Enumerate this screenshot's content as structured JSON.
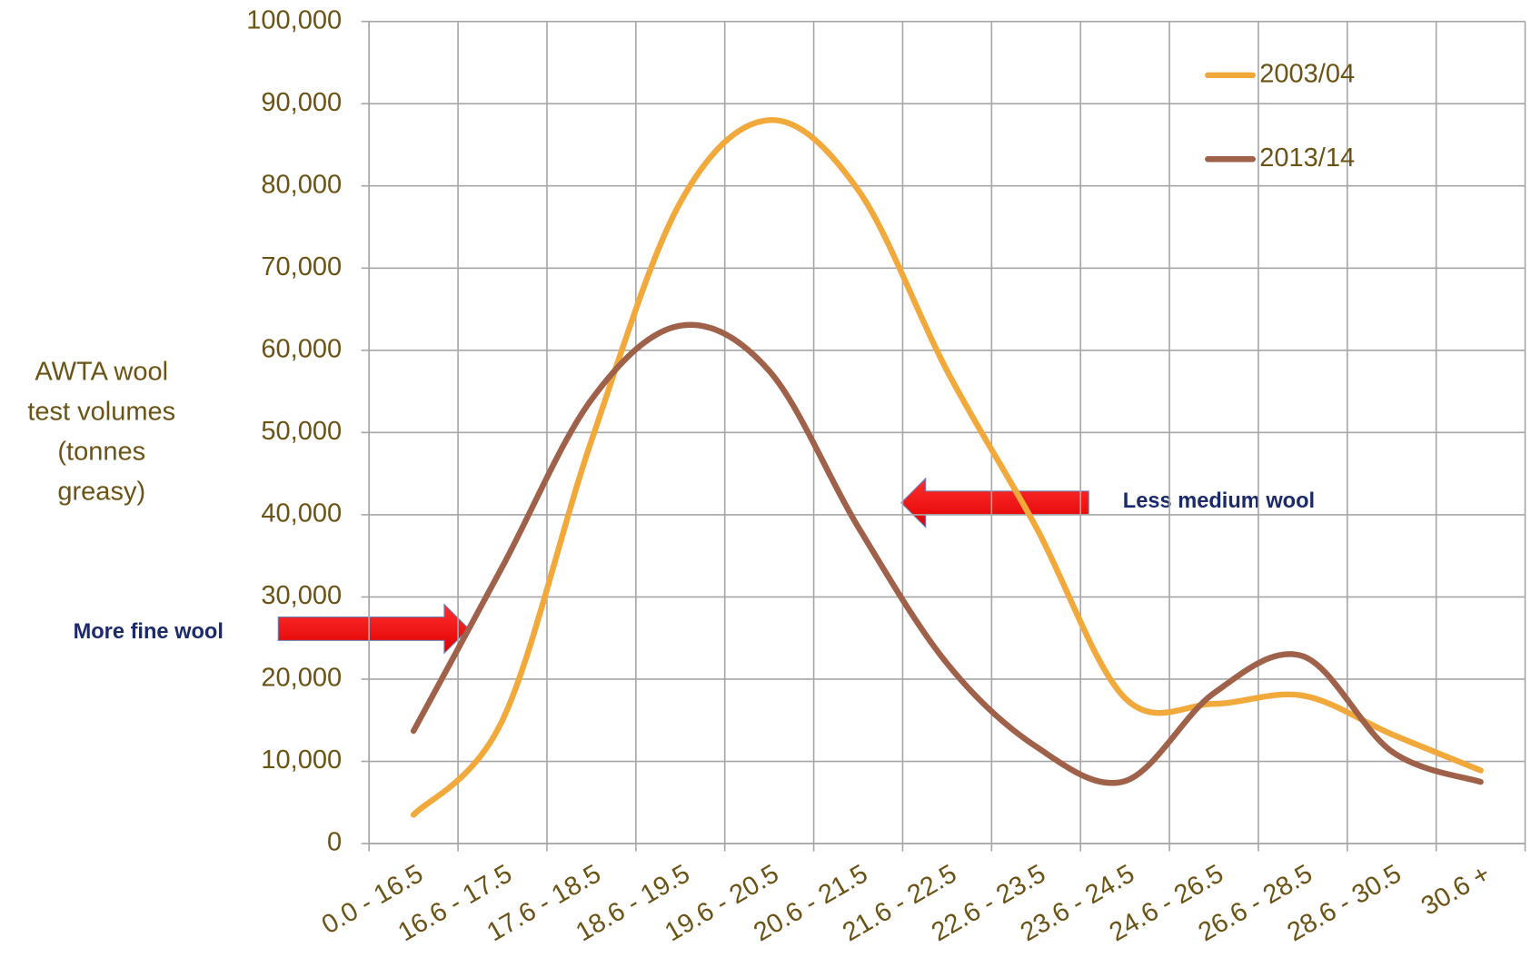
{
  "chart_data": {
    "type": "line",
    "y_label": [
      "AWTA wool",
      "test volumes",
      "(tonnes",
      "greasy)"
    ],
    "categories": [
      "0.0 - 16.5",
      "16.6 - 17.5",
      "17.6 - 18.5",
      "18.6 - 19.5",
      "19.6 - 20.5",
      "20.6 - 21.5",
      "21.6 - 22.5",
      "22.6 - 23.5",
      "23.6 - 24.5",
      "24.6 - 26.5",
      "26.6 - 28.5",
      "28.6 - 30.5",
      "30.6 +"
    ],
    "series": [
      {
        "name": "2003/04",
        "color": "#F2A93B",
        "values": [
          3500,
          15000,
          49000,
          78000,
          88000,
          79500,
          57500,
          38500,
          17700,
          17000,
          18000,
          13300,
          8900
        ]
      },
      {
        "name": "2013/14",
        "color": "#A0614A",
        "values": [
          13700,
          33700,
          54000,
          63000,
          57500,
          38500,
          21900,
          11800,
          7600,
          18300,
          22800,
          11200,
          7500
        ]
      }
    ],
    "ylim": [
      0,
      100000
    ],
    "yticks": [
      0,
      {
        "value": 10000,
        "label": "10,000"
      },
      {
        "value": 20000,
        "label": "20,000"
      },
      {
        "value": 30000,
        "label": "30,000"
      },
      {
        "value": 40000,
        "label": "40,000"
      },
      {
        "value": 50000,
        "label": "50,000"
      },
      {
        "value": 60000,
        "label": "60,000"
      },
      {
        "value": 70000,
        "label": "70,000"
      },
      {
        "value": 80000,
        "label": "80,000"
      },
      {
        "value": 90000,
        "label": "90,000"
      },
      {
        "value": 100000,
        "label": "100,000"
      }
    ],
    "grid": true,
    "smooth": true,
    "legend": "top-right",
    "annotations": [
      "More fine wool",
      "Less medium wool"
    ]
  }
}
